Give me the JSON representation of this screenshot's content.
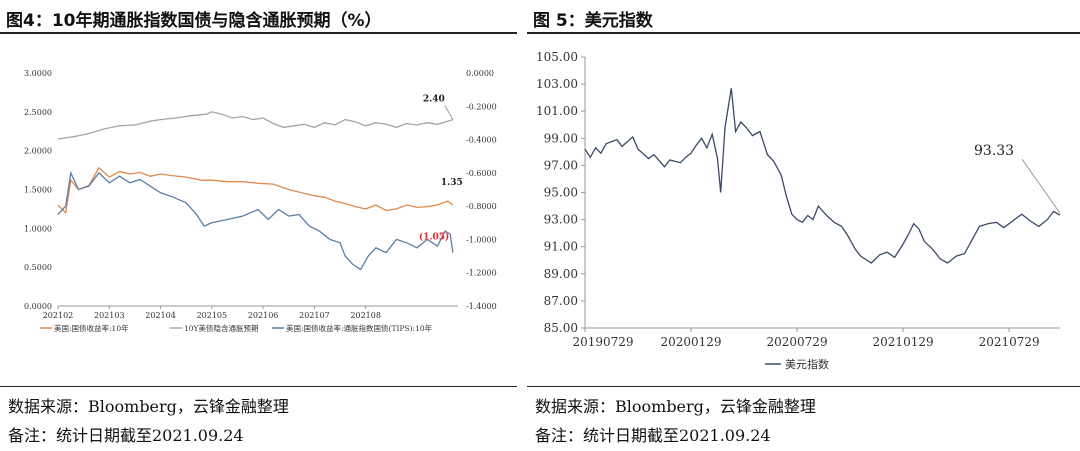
{
  "left": {
    "title": "图4：10年期通胀指数国债与隐含通胀预期（%）",
    "source": "数据来源：Bloomberg，云锋金融整理",
    "note": "备注：统计日期截至2021.09.24",
    "chart_data": {
      "type": "line",
      "x_ticks": [
        "202102",
        "202103",
        "202104",
        "202105",
        "202106",
        "202107",
        "202108"
      ],
      "y_left_ticks": [
        "3.0000",
        "2.5000",
        "2.0000",
        "1.5000",
        "1.0000",
        "0.5000",
        "0.0000"
      ],
      "y_left_range": [
        0,
        3
      ],
      "y_right_ticks": [
        "0.0000",
        "-0.2000",
        "-0.4000",
        "-0.6000",
        "-0.8000",
        "-1.0000",
        "-1.2000",
        "-1.4000"
      ],
      "y_right_range": [
        -1.4,
        0
      ],
      "x_range": [
        0,
        7.8
      ],
      "series": [
        {
          "name": "美国:国债收益率:10年",
          "color": "#e08a4c",
          "axis": "left",
          "points": [
            [
              0,
              1.3
            ],
            [
              0.15,
              1.2
            ],
            [
              0.25,
              1.62
            ],
            [
              0.4,
              1.5
            ],
            [
              0.6,
              1.55
            ],
            [
              0.8,
              1.78
            ],
            [
              1.0,
              1.66
            ],
            [
              1.2,
              1.73
            ],
            [
              1.4,
              1.7
            ],
            [
              1.6,
              1.72
            ],
            [
              1.8,
              1.67
            ],
            [
              2.0,
              1.7
            ],
            [
              2.2,
              1.68
            ],
            [
              2.5,
              1.66
            ],
            [
              2.8,
              1.62
            ],
            [
              3.0,
              1.62
            ],
            [
              3.3,
              1.6
            ],
            [
              3.6,
              1.6
            ],
            [
              3.9,
              1.58
            ],
            [
              4.2,
              1.57
            ],
            [
              4.5,
              1.5
            ],
            [
              4.8,
              1.45
            ],
            [
              5.0,
              1.42
            ],
            [
              5.2,
              1.4
            ],
            [
              5.4,
              1.35
            ],
            [
              5.6,
              1.32
            ],
            [
              5.8,
              1.28
            ],
            [
              6.0,
              1.25
            ],
            [
              6.2,
              1.3
            ],
            [
              6.4,
              1.23
            ],
            [
              6.6,
              1.25
            ],
            [
              6.8,
              1.3
            ],
            [
              7.0,
              1.27
            ],
            [
              7.2,
              1.28
            ],
            [
              7.4,
              1.3
            ],
            [
              7.6,
              1.35
            ],
            [
              7.7,
              1.3
            ]
          ]
        },
        {
          "name": "10Y美债隐含通胀预期",
          "color": "#a5a5a5",
          "axis": "left",
          "points": [
            [
              0,
              2.15
            ],
            [
              0.3,
              2.18
            ],
            [
              0.6,
              2.22
            ],
            [
              0.9,
              2.28
            ],
            [
              1.2,
              2.32
            ],
            [
              1.5,
              2.33
            ],
            [
              1.8,
              2.38
            ],
            [
              2.0,
              2.4
            ],
            [
              2.3,
              2.42
            ],
            [
              2.6,
              2.45
            ],
            [
              2.9,
              2.47
            ],
            [
              3.0,
              2.5
            ],
            [
              3.2,
              2.47
            ],
            [
              3.4,
              2.42
            ],
            [
              3.6,
              2.44
            ],
            [
              3.8,
              2.4
            ],
            [
              4.0,
              2.42
            ],
            [
              4.2,
              2.35
            ],
            [
              4.4,
              2.3
            ],
            [
              4.6,
              2.32
            ],
            [
              4.8,
              2.34
            ],
            [
              5.0,
              2.3
            ],
            [
              5.2,
              2.36
            ],
            [
              5.4,
              2.33
            ],
            [
              5.6,
              2.4
            ],
            [
              5.8,
              2.37
            ],
            [
              6.0,
              2.32
            ],
            [
              6.2,
              2.36
            ],
            [
              6.4,
              2.34
            ],
            [
              6.6,
              2.3
            ],
            [
              6.8,
              2.35
            ],
            [
              7.0,
              2.33
            ],
            [
              7.2,
              2.36
            ],
            [
              7.4,
              2.34
            ],
            [
              7.6,
              2.38
            ],
            [
              7.7,
              2.4
            ]
          ]
        },
        {
          "name": "美国:国债收益率:通胀指数国债(TIPS):10年",
          "color": "#5b7fa6",
          "axis": "right",
          "points": [
            [
              0,
              -0.85
            ],
            [
              0.15,
              -0.8
            ],
            [
              0.25,
              -0.6
            ],
            [
              0.4,
              -0.7
            ],
            [
              0.6,
              -0.68
            ],
            [
              0.8,
              -0.6
            ],
            [
              1.0,
              -0.66
            ],
            [
              1.2,
              -0.62
            ],
            [
              1.4,
              -0.66
            ],
            [
              1.6,
              -0.64
            ],
            [
              1.8,
              -0.68
            ],
            [
              2.0,
              -0.72
            ],
            [
              2.2,
              -0.74
            ],
            [
              2.5,
              -0.78
            ],
            [
              2.7,
              -0.85
            ],
            [
              2.85,
              -0.92
            ],
            [
              3.0,
              -0.9
            ],
            [
              3.3,
              -0.88
            ],
            [
              3.6,
              -0.86
            ],
            [
              3.9,
              -0.82
            ],
            [
              4.1,
              -0.88
            ],
            [
              4.3,
              -0.82
            ],
            [
              4.5,
              -0.86
            ],
            [
              4.7,
              -0.85
            ],
            [
              4.9,
              -0.92
            ],
            [
              5.1,
              -0.95
            ],
            [
              5.3,
              -1.0
            ],
            [
              5.5,
              -1.02
            ],
            [
              5.6,
              -1.1
            ],
            [
              5.75,
              -1.15
            ],
            [
              5.9,
              -1.18
            ],
            [
              6.05,
              -1.1
            ],
            [
              6.2,
              -1.05
            ],
            [
              6.4,
              -1.08
            ],
            [
              6.6,
              -1.0
            ],
            [
              6.8,
              -1.02
            ],
            [
              7.0,
              -1.05
            ],
            [
              7.2,
              -1.0
            ],
            [
              7.4,
              -1.04
            ],
            [
              7.55,
              -0.95
            ],
            [
              7.65,
              -0.97
            ],
            [
              7.7,
              -1.08
            ]
          ]
        }
      ],
      "annotations": [
        {
          "text": "2.40",
          "color": "#222222",
          "bold": true
        },
        {
          "text": "1.35",
          "color": "#222222",
          "bold": true
        },
        {
          "text": "(1.05)",
          "color": "#e8262b",
          "bold": true
        }
      ]
    }
  },
  "right": {
    "title": "图 5：美元指数",
    "source": "数据来源：Bloomberg，云锋金融整理",
    "note": "备注：统计日期截至2021.09.24",
    "chart_data": {
      "type": "line",
      "x_ticks": [
        "20190729",
        "20200129",
        "20200729",
        "20210129",
        "20210729"
      ],
      "y_ticks": [
        "105.00",
        "103.00",
        "101.00",
        "99.00",
        "97.00",
        "95.00",
        "93.00",
        "91.00",
        "89.00",
        "87.00",
        "85.00"
      ],
      "y_range": [
        85,
        105
      ],
      "x_range": [
        0,
        4.48
      ],
      "series": [
        {
          "name": "美元指数",
          "color": "#3a4a66",
          "points": [
            [
              0,
              98.2
            ],
            [
              0.05,
              97.6
            ],
            [
              0.1,
              98.3
            ],
            [
              0.15,
              97.9
            ],
            [
              0.2,
              98.6
            ],
            [
              0.3,
              98.9
            ],
            [
              0.35,
              98.4
            ],
            [
              0.45,
              99.1
            ],
            [
              0.5,
              98.2
            ],
            [
              0.6,
              97.5
            ],
            [
              0.65,
              97.8
            ],
            [
              0.75,
              96.9
            ],
            [
              0.8,
              97.4
            ],
            [
              0.9,
              97.2
            ],
            [
              0.95,
              97.6
            ],
            [
              1.0,
              97.9
            ],
            [
              1.05,
              98.5
            ],
            [
              1.1,
              99.0
            ],
            [
              1.15,
              98.3
            ],
            [
              1.2,
              99.3
            ],
            [
              1.25,
              97.5
            ],
            [
              1.28,
              95.0
            ],
            [
              1.32,
              99.8
            ],
            [
              1.38,
              102.7
            ],
            [
              1.42,
              99.5
            ],
            [
              1.47,
              100.2
            ],
            [
              1.52,
              99.8
            ],
            [
              1.58,
              99.2
            ],
            [
              1.65,
              99.5
            ],
            [
              1.72,
              97.8
            ],
            [
              1.78,
              97.3
            ],
            [
              1.85,
              96.3
            ],
            [
              1.9,
              94.7
            ],
            [
              1.95,
              93.4
            ],
            [
              2.0,
              93.0
            ],
            [
              2.05,
              92.8
            ],
            [
              2.1,
              93.3
            ],
            [
              2.15,
              93.0
            ],
            [
              2.2,
              94.0
            ],
            [
              2.28,
              93.3
            ],
            [
              2.35,
              92.8
            ],
            [
              2.42,
              92.5
            ],
            [
              2.48,
              91.8
            ],
            [
              2.55,
              90.8
            ],
            [
              2.6,
              90.3
            ],
            [
              2.7,
              89.8
            ],
            [
              2.78,
              90.4
            ],
            [
              2.85,
              90.6
            ],
            [
              2.92,
              90.2
            ],
            [
              3.0,
              91.2
            ],
            [
              3.05,
              91.9
            ],
            [
              3.1,
              92.7
            ],
            [
              3.15,
              92.3
            ],
            [
              3.2,
              91.4
            ],
            [
              3.28,
              90.8
            ],
            [
              3.35,
              90.1
            ],
            [
              3.42,
              89.8
            ],
            [
              3.5,
              90.3
            ],
            [
              3.58,
              90.5
            ],
            [
              3.65,
              91.5
            ],
            [
              3.72,
              92.5
            ],
            [
              3.8,
              92.7
            ],
            [
              3.88,
              92.8
            ],
            [
              3.95,
              92.4
            ],
            [
              4.05,
              93.0
            ],
            [
              4.12,
              93.4
            ],
            [
              4.2,
              92.9
            ],
            [
              4.28,
              92.5
            ],
            [
              4.36,
              93.0
            ],
            [
              4.42,
              93.6
            ],
            [
              4.48,
              93.33
            ]
          ]
        }
      ],
      "annotation": {
        "text": "93.33",
        "color": "#222222"
      },
      "legend": {
        "text": "美元指数",
        "placement": "bottom"
      }
    }
  }
}
